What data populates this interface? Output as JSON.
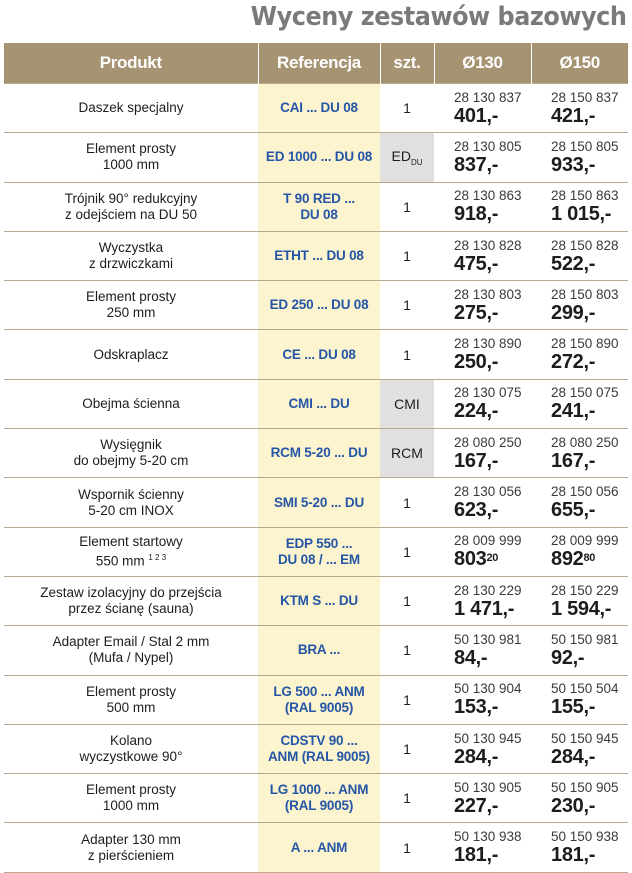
{
  "title": "Wyceny zestawów bazowych",
  "headers": {
    "product": "Produkt",
    "reference": "Referencja",
    "qty": "szt.",
    "d130": "Ø130",
    "d150": "Ø150"
  },
  "colors": {
    "header_bg": "#a69372",
    "reference_bg": "#fbf4cf",
    "reference_text": "#2556a6",
    "title": "#7a7a7a"
  },
  "rows": [
    {
      "p1": "Daszek specjalny",
      "p2": "",
      "r1": "CAI ... DU 08",
      "r2": "",
      "q": "1",
      "c130": "28 130 837",
      "a130": "401,-",
      "c150": "28 150 837",
      "a150": "421,-"
    },
    {
      "p1": "Element prosty",
      "p2": "1000 mm",
      "r1": "ED 1000 ... DU 08",
      "r2": "",
      "q": "ED",
      "qsub": "DU",
      "c130": "28 130 805",
      "a130": "837,-",
      "c150": "28 150 805",
      "a150": "933,-"
    },
    {
      "p1": "Trójnik 90° redukcyjny",
      "p2": "z odejściem na DU 50",
      "r1": "T 90 RED ...",
      "r2": "DU 08",
      "q": "1",
      "c130": "28 130 863",
      "a130": "918,-",
      "c150": "28 150 863",
      "a150": "1 015,-"
    },
    {
      "p1": "Wyczystka",
      "p2": "z drzwiczkami",
      "r1": "ETHT ... DU 08",
      "r2": "",
      "q": "1",
      "c130": "28 130 828",
      "a130": "475,-",
      "c150": "28 150 828",
      "a150": "522,-"
    },
    {
      "p1": "Element prosty",
      "p2": "250 mm",
      "r1": "ED 250 ... DU 08",
      "r2": "",
      "q": "1",
      "c130": "28 130 803",
      "a130": "275,-",
      "c150": "28 150 803",
      "a150": "299,-"
    },
    {
      "p1": "Odskraplacz",
      "p2": "",
      "r1": "CE ... DU 08",
      "r2": "",
      "q": "1",
      "c130": "28 130 890",
      "a130": "250,-",
      "c150": "28 150 890",
      "a150": "272,-"
    },
    {
      "p1": "Obejma ścienna",
      "p2": "",
      "r1": "CMI ... DU",
      "r2": "",
      "q": "CMI",
      "c130": "28 130 075",
      "a130": "224,-",
      "c150": "28 150 075",
      "a150": "241,-"
    },
    {
      "p1": "Wysięgnik",
      "p2": "do obejmy 5-20 cm",
      "r1": "RCM 5-20 ... DU",
      "r2": "",
      "q": "RCM",
      "c130": "28 080 250",
      "a130": "167,-",
      "c150": "28 080 250",
      "a150": "167,-"
    },
    {
      "p1": "Wspornik ścienny",
      "p2": "5-20 cm INOX",
      "r1": "SMI 5-20 ... DU",
      "r2": "",
      "q": "1",
      "c130": "28 130 056",
      "a130": "623,-",
      "c150": "28 150 056",
      "a150": "655,-"
    },
    {
      "p1": "Element startowy",
      "p2": "550 mm",
      "p2sup": "1 2 3",
      "r1": "EDP 550 ...",
      "r2": "DU 08 / ... EM",
      "q": "1",
      "c130": "28 009 999",
      "a130": "803",
      "a130sup": "20",
      "c150": "28 009 999",
      "a150": "892",
      "a150sup": "80"
    },
    {
      "p1": "Zestaw izolacyjny do przejścia",
      "p2": "przez ścianę (sauna)",
      "r1": "KTM S ... DU",
      "r2": "",
      "q": "1",
      "c130": "28 130 229",
      "a130": "1 471,-",
      "c150": "28 150 229",
      "a150": "1 594,-"
    },
    {
      "p1": "Adapter Email / Stal 2 mm",
      "p2": "(Mufa / Nypel)",
      "r1": "BRA ...",
      "r2": "",
      "q": "1",
      "c130": "50 130 981",
      "a130": "84,-",
      "c150": "50 150 981",
      "a150": "92,-"
    },
    {
      "p1": "Element prosty",
      "p2": "500 mm",
      "r1": "LG 500 ... ANM",
      "r2": "(RAL 9005)",
      "q": "1",
      "c130": "50 130 904",
      "a130": "153,-",
      "c150": "50 150 504",
      "a150": "155,-"
    },
    {
      "p1": "Kolano",
      "p2": "wyczystkowe 90°",
      "r1": "CDSTV 90 ...",
      "r2": "ANM (RAL 9005)",
      "q": "1",
      "c130": "50 130 945",
      "a130": "284,-",
      "c150": "50 150 945",
      "a150": "284,-"
    },
    {
      "p1": "Element prosty",
      "p2": "1000 mm",
      "r1": "LG 1000 ... ANM",
      "r2": "(RAL 9005)",
      "q": "1",
      "c130": "50 130 905",
      "a130": "227,-",
      "c150": "50 150 905",
      "a150": "230,-"
    },
    {
      "p1": "Adapter 130 mm",
      "p2": "z pierścieniem",
      "r1": "A ... ANM",
      "r2": "",
      "q": "1",
      "c130": "50 130 938",
      "a130": "181,-",
      "c150": "50 150 938",
      "a150": "181,-"
    }
  ]
}
